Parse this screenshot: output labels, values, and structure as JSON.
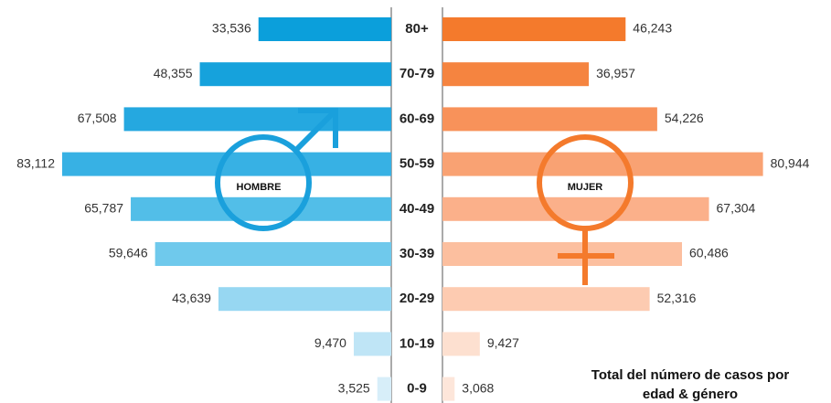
{
  "chart_data": {
    "type": "pyramid",
    "title": "Total del número de casos por edad & género",
    "categories": [
      "80+",
      "70-79",
      "60-69",
      "50-59",
      "40-49",
      "30-39",
      "20-29",
      "10-19",
      "0-9"
    ],
    "series": [
      {
        "name": "HOMBRE",
        "color": "#1aa0dc",
        "side": "left",
        "colors": [
          "#0b9fdb",
          "#16a2dc",
          "#25a8e0",
          "#37b1e4",
          "#52bee8",
          "#6fc9ec",
          "#97d7f2",
          "#bfe5f6",
          "#d7eef9"
        ],
        "values": [
          33536,
          48355,
          67508,
          83112,
          65787,
          59646,
          43639,
          9470,
          3525
        ],
        "value_labels": [
          "33,536",
          "48,355",
          "67,508",
          "83,112",
          "65,787",
          "59,646",
          "43,639",
          "9,470",
          "3,525"
        ]
      },
      {
        "name": "MUJER",
        "color": "#f47a2c",
        "side": "right",
        "colors": [
          "#f47a2c",
          "#f58440",
          "#f8925a",
          "#f9a273",
          "#fbb08a",
          "#fcbf9f",
          "#fdcbb1",
          "#fde0d0",
          "#fde6da"
        ],
        "values": [
          46243,
          36957,
          54226,
          80944,
          67304,
          60486,
          52316,
          9427,
          3068
        ],
        "value_labels": [
          "46,243",
          "36,957",
          "54,226",
          "80,944",
          "67,304",
          "60,486",
          "52,316",
          "9,427",
          "3,068"
        ]
      }
    ]
  }
}
